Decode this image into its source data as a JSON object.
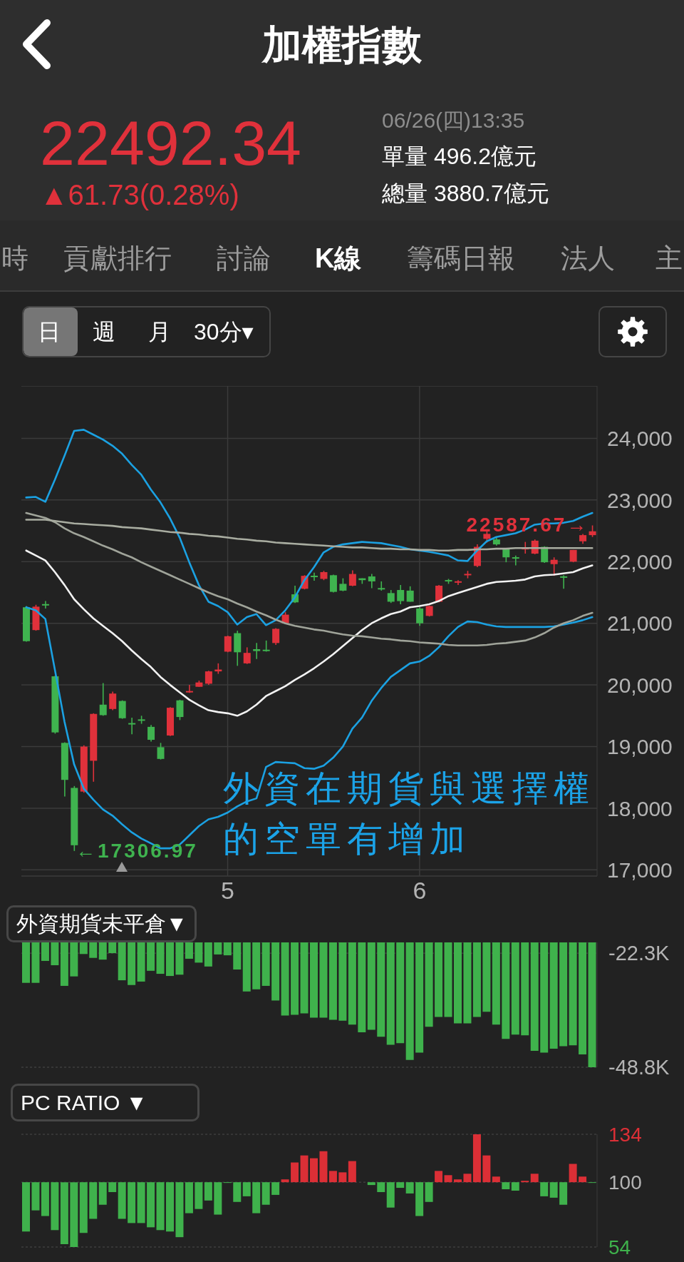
{
  "chart_data": [
    {
      "type": "candlestick",
      "title": "加權指數",
      "annotations": [
        "22492.34",
        "▲61.73(0.28%)",
        "06/26(四)13:35",
        "單量 496.2億元",
        "總量 3880.7億元",
        "時",
        "貢獻排行",
        "討論",
        "K線",
        "籌碼日報",
        "法人",
        "主",
        "日",
        "週",
        "月",
        "30分▾",
        {
          "text": "22587.67→",
          "y": 22587.67
        },
        "←17306.97",
        "外資在期貨與選擇權的空單有增加"
      ],
      "categories": [
        null,
        null,
        null,
        null,
        null,
        null,
        null,
        null,
        null,
        null,
        null,
        null,
        null,
        null,
        null,
        null,
        null,
        null,
        null,
        null,
        null,
        "5",
        null,
        null,
        null,
        null,
        null,
        null,
        null,
        null,
        null,
        null,
        null,
        null,
        null,
        null,
        null,
        null,
        null,
        null,
        null,
        "6",
        null,
        null,
        null,
        null,
        null,
        null,
        null,
        null,
        null,
        null,
        null,
        null,
        null,
        null,
        null,
        null,
        null,
        null
      ],
      "ohlc": [
        [
          21260,
          21280,
          20700,
          20710
        ],
        [
          20890,
          21300,
          20880,
          21270
        ],
        [
          21300,
          21360,
          21240,
          21290
        ],
        [
          20140,
          20150,
          19210,
          19230
        ],
        [
          19060,
          19070,
          18190,
          18460
        ],
        [
          18330,
          18360,
          17306.97,
          17400
        ],
        [
          18270,
          19020,
          18250,
          19000
        ],
        [
          18770,
          19540,
          18430,
          19530
        ],
        [
          19680,
          20030,
          19500,
          19510
        ],
        [
          19610,
          19890,
          19590,
          19860
        ],
        [
          19740,
          19750,
          19450,
          19460
        ],
        [
          19370,
          19470,
          19200,
          19360
        ],
        [
          19430,
          19500,
          19370,
          19420
        ],
        [
          19320,
          19350,
          19080,
          19110
        ],
        [
          18990,
          19060,
          18790,
          18800
        ],
        [
          19180,
          19640,
          19170,
          19630
        ],
        [
          19750,
          19760,
          19430,
          19480
        ],
        [
          19870,
          20000,
          19870,
          19890
        ],
        [
          19970,
          20070,
          19970,
          20040
        ],
        [
          20020,
          20230,
          20000,
          20220
        ],
        [
          20220,
          20350,
          20180,
          20250
        ],
        [
          20540,
          20800,
          20530,
          20790
        ],
        [
          20840,
          20880,
          20310,
          20530
        ],
        [
          20350,
          20610,
          20340,
          20520
        ],
        [
          20580,
          20680,
          20420,
          20550
        ],
        [
          20560,
          20720,
          20540,
          20540
        ],
        [
          20680,
          20920,
          20650,
          20910
        ],
        [
          21000,
          21180,
          20990,
          21140
        ],
        [
          21470,
          21610,
          21330,
          21340
        ],
        [
          21560,
          21780,
          21550,
          21770
        ],
        [
          21760,
          21820,
          21690,
          21740
        ],
        [
          21720,
          21850,
          21700,
          21830
        ],
        [
          21780,
          21790,
          21500,
          21510
        ],
        [
          21640,
          21730,
          21520,
          21530
        ],
        [
          21610,
          21860,
          21600,
          21800
        ],
        [
          21730,
          21730,
          21640,
          21700
        ],
        [
          21760,
          21800,
          21570,
          21680
        ],
        [
          21560,
          21680,
          21530,
          21540
        ],
        [
          21490,
          21540,
          21330,
          21350
        ],
        [
          21540,
          21620,
          21310,
          21360
        ],
        [
          21530,
          21600,
          21350,
          21350
        ],
        [
          21240,
          21260,
          20960,
          21000
        ],
        [
          21120,
          21290,
          21110,
          21280
        ],
        [
          21350,
          21620,
          21340,
          21610
        ],
        [
          21690,
          21720,
          21640,
          21680
        ],
        [
          21660,
          21700,
          21620,
          21670
        ],
        [
          21770,
          21850,
          21730,
          21790
        ],
        [
          21930,
          22280,
          21910,
          22240
        ],
        [
          22370,
          22490,
          22310,
          22450
        ],
        [
          22360,
          22390,
          22260,
          22280
        ],
        [
          22200,
          22210,
          21990,
          22070
        ],
        [
          22060,
          22100,
          21940,
          22040
        ],
        [
          22190,
          22320,
          22130,
          22210
        ],
        [
          22130,
          22360,
          22120,
          22340
        ],
        [
          22240,
          22250,
          21980,
          21990
        ],
        [
          21960,
          22070,
          21770,
          22030
        ],
        [
          21750,
          21780,
          21560,
          21730
        ],
        [
          22000,
          22190,
          21990,
          22190
        ],
        [
          22330,
          22450,
          22290,
          22430
        ],
        [
          22430,
          22587.67,
          22400,
          22492.34
        ]
      ],
      "colors": [
        "#3fb34f",
        "#e0313b",
        "#3fb34f",
        "#3fb34f",
        "#3fb34f",
        "#3fb34f",
        "#e0313b",
        "#e0313b",
        "#3fb34f",
        "#e0313b",
        "#3fb34f",
        "#3fb34f",
        "#3fb34f",
        "#3fb34f",
        "#3fb34f",
        "#e0313b",
        "#3fb34f",
        "#e0313b",
        "#e0313b",
        "#e0313b",
        "#e0313b",
        "#e0313b",
        "#3fb34f",
        "#e0313b",
        "#3fb34f",
        "#3fb34f",
        "#e0313b",
        "#e0313b",
        "#3fb34f",
        "#e0313b",
        "#3fb34f",
        "#e0313b",
        "#3fb34f",
        "#3fb34f",
        "#e0313b",
        "#3fb34f",
        "#3fb34f",
        "#3fb34f",
        "#3fb34f",
        "#3fb34f",
        "#3fb34f",
        "#3fb34f",
        "#e0313b",
        "#e0313b",
        "#3fb34f",
        "#e0313b",
        "#e0313b",
        "#e0313b",
        "#e0313b",
        "#3fb34f",
        "#3fb34f",
        "#3fb34f",
        "#e0313b",
        "#e0313b",
        "#3fb34f",
        "#e0313b",
        "#3fb34f",
        "#e0313b",
        "#e0313b",
        "#e0313b"
      ],
      "series": [
        {
          "type": "line",
          "color": "#1ba1e2",
          "values": [
            23040,
            23050,
            22970,
            23330,
            23720,
            24120,
            24140,
            24060,
            23980,
            23880,
            23750,
            23570,
            23410,
            23170,
            22960,
            22700,
            22390,
            21990,
            21620,
            21350,
            21280,
            21180,
            20980,
            21100,
            21150,
            20970,
            21050,
            21210,
            21420,
            21700,
            21910,
            22150,
            22240,
            22280,
            22300,
            22320,
            22310,
            22300,
            22270,
            22240,
            22200,
            22180,
            22160,
            22130,
            22100,
            22020,
            22010,
            22180,
            22330,
            22400,
            22430,
            22460,
            22520,
            22600,
            22620,
            22620,
            22630,
            22660,
            22730,
            22790
          ]
        },
        {
          "type": "line",
          "color": "#1ba1e2",
          "values": [
            21260,
            21210,
            21070,
            20240,
            19400,
            18710,
            18320,
            18140,
            17980,
            17880,
            17740,
            17610,
            17510,
            17430,
            17350,
            17350,
            17410,
            17560,
            17710,
            17820,
            17860,
            17930,
            18030,
            18110,
            18160,
            18670,
            18750,
            18740,
            18730,
            18650,
            18640,
            18690,
            18820,
            19000,
            19290,
            19470,
            19740,
            19950,
            20130,
            20240,
            20350,
            20380,
            20470,
            20610,
            20790,
            20940,
            21030,
            21020,
            20980,
            20950,
            20940,
            20940,
            20940,
            20940,
            20940,
            20950,
            20980,
            21010,
            21050,
            21100
          ]
        },
        {
          "type": "line",
          "color": "#f2f2f2",
          "values": [
            22180,
            22100,
            22020,
            21830,
            21620,
            21390,
            21230,
            21080,
            20960,
            20840,
            20710,
            20560,
            20420,
            20290,
            20130,
            20000,
            19880,
            19760,
            19670,
            19590,
            19560,
            19540,
            19500,
            19570,
            19680,
            19820,
            19900,
            19980,
            20080,
            20170,
            20270,
            20380,
            20500,
            20630,
            20760,
            20890,
            21000,
            21080,
            21150,
            21190,
            21260,
            21280,
            21310,
            21360,
            21440,
            21490,
            21540,
            21590,
            21640,
            21670,
            21680,
            21690,
            21710,
            21760,
            21780,
            21790,
            21810,
            21830,
            21890,
            21940
          ]
        },
        {
          "type": "line",
          "color": "#a0a49a",
          "values": [
            22790,
            22750,
            22710,
            22640,
            22540,
            22460,
            22400,
            22330,
            22260,
            22200,
            22130,
            22070,
            21990,
            21920,
            21850,
            21780,
            21710,
            21640,
            21570,
            21500,
            21440,
            21390,
            21320,
            21260,
            21190,
            21130,
            21060,
            21000,
            20960,
            20930,
            20900,
            20880,
            20850,
            20820,
            20800,
            20790,
            20770,
            20750,
            20740,
            20720,
            20710,
            20690,
            20680,
            20670,
            20650,
            20640,
            20640,
            20640,
            20650,
            20670,
            20680,
            20700,
            20720,
            20770,
            20840,
            20930,
            21000,
            21050,
            21120,
            21170
          ]
        },
        {
          "type": "line",
          "color": "#a9ada1",
          "values": [
            22680,
            22680,
            22680,
            22660,
            22640,
            22620,
            22610,
            22600,
            22590,
            22580,
            22560,
            22550,
            22540,
            22520,
            22500,
            22480,
            22470,
            22450,
            22440,
            22420,
            22410,
            22390,
            22370,
            22360,
            22340,
            22330,
            22310,
            22300,
            22290,
            22280,
            22270,
            22260,
            22250,
            22240,
            22230,
            22230,
            22220,
            22210,
            22210,
            22200,
            22200,
            22190,
            22190,
            22180,
            22180,
            22190,
            22190,
            22200,
            22200,
            22210,
            22210,
            22220,
            22220,
            22220,
            22220,
            22220,
            22220,
            22220,
            22220,
            22220
          ]
        }
      ],
      "ylim": [
        16900,
        24850
      ],
      "yticks": [
        {
          "value": 17000,
          "label": "17,000"
        },
        {
          "value": 18000,
          "label": "18,000"
        },
        {
          "value": 19000,
          "label": "19,000"
        },
        {
          "value": 20000,
          "label": "20,000"
        },
        {
          "value": 21000,
          "label": "21,000"
        },
        {
          "value": 22000,
          "label": "22,000"
        },
        {
          "value": 23000,
          "label": "23,000"
        },
        {
          "value": 24000,
          "label": "24,000"
        }
      ],
      "grid": true
    },
    {
      "type": "bar",
      "title": "外資期貨未平倉▼",
      "categories": [
        null,
        null,
        null,
        null,
        null,
        null,
        null,
        null,
        null,
        null,
        null,
        null,
        null,
        null,
        null,
        null,
        null,
        null,
        null,
        null,
        null,
        null,
        null,
        null,
        null,
        null,
        null,
        null,
        null,
        null,
        null,
        null,
        null,
        null,
        null,
        null,
        null,
        null,
        null,
        null,
        null,
        null,
        null,
        null,
        null,
        null,
        null,
        null,
        null,
        null,
        null,
        null,
        null,
        null,
        null,
        null,
        null,
        null,
        null,
        null
      ],
      "values": [
        -29.2,
        -29.2,
        -24.1,
        -25.1,
        -29.9,
        -27.7,
        -22.5,
        -23.4,
        -23.8,
        -22.3,
        -28.6,
        -29.7,
        -28.9,
        -26.4,
        -27.1,
        -27.6,
        -27.3,
        -23.6,
        -24.5,
        -25.4,
        -22.6,
        -22.8,
        -26.1,
        -31.2,
        -30.7,
        -29.9,
        -33.3,
        -36.8,
        -36.6,
        -36.3,
        -37.3,
        -37.3,
        -37.8,
        -38.0,
        -38.9,
        -40.7,
        -40.1,
        -41.7,
        -43.6,
        -43.2,
        -47.1,
        -45.4,
        -39.4,
        -37.1,
        -37.1,
        -38.6,
        -38.6,
        -37.1,
        -35.9,
        -38.9,
        -42.2,
        -41.2,
        -41.4,
        -45.0,
        -45.4,
        -44.5,
        -43.9,
        -43.7,
        -45.8,
        -48.8
      ],
      "color": "#3fb24c",
      "ylim": [
        -48.8,
        -19.8
      ],
      "yticks": [
        {
          "value": -22.3,
          "label": "-22.3K"
        },
        {
          "value": -48.8,
          "label": "-48.8K"
        }
      ],
      "grid": "y",
      "tick_labels": "y"
    },
    {
      "type": "bar",
      "title": "PC RATIO ▼",
      "categories": [
        null,
        null,
        null,
        null,
        null,
        null,
        null,
        null,
        null,
        null,
        null,
        null,
        null,
        null,
        null,
        null,
        null,
        null,
        null,
        null,
        null,
        null,
        null,
        null,
        null,
        null,
        null,
        null,
        null,
        null,
        null,
        null,
        null,
        null,
        null,
        null,
        null,
        null,
        null,
        null,
        null,
        null,
        null,
        null,
        null,
        null,
        null,
        null,
        null,
        null,
        null,
        null,
        null,
        null,
        null,
        null,
        null,
        null,
        null,
        null
      ],
      "base": [
        100,
        100,
        100,
        100,
        100,
        100,
        100,
        100,
        100,
        100,
        100,
        100,
        100,
        100,
        100,
        100,
        100,
        100,
        100,
        100,
        100,
        100,
        100,
        100,
        100,
        100,
        100,
        100,
        100,
        100,
        100,
        100,
        100,
        100,
        100,
        null,
        100,
        100,
        100,
        100,
        100,
        100,
        100,
        100,
        100,
        100,
        100,
        100,
        100,
        100,
        100,
        100,
        100,
        100,
        100,
        100,
        100,
        100,
        100,
        100
      ],
      "values": [
        -35,
        -20,
        -24,
        -34,
        -44,
        -46,
        -36,
        -26,
        -16,
        -7,
        -26,
        -29,
        -29,
        -32,
        -34,
        -35,
        -39,
        -22,
        -19,
        -13,
        -23,
        -0.5,
        -14,
        -10,
        -22,
        -16,
        -9,
        2,
        14,
        19,
        17,
        22,
        8,
        7,
        15,
        null,
        -2,
        -7,
        -18,
        -4,
        -8,
        -24,
        -14,
        8,
        5,
        2,
        6,
        34,
        19,
        4,
        -5,
        -6,
        1,
        6,
        -10,
        -11,
        -16,
        13,
        4,
        -0.5
      ],
      "colors": [
        "#3fb24c",
        "#3fb24c",
        "#3fb24c",
        "#3fb24c",
        "#3fb24c",
        "#3fb24c",
        "#3fb24c",
        "#3fb24c",
        "#3fb24c",
        "#3fb24c",
        "#3fb24c",
        "#3fb24c",
        "#3fb24c",
        "#3fb24c",
        "#3fb24c",
        "#3fb24c",
        "#3fb24c",
        "#3fb24c",
        "#3fb24c",
        "#3fb24c",
        "#3fb24c",
        "#3fb24c",
        "#3fb24c",
        "#3fb24c",
        "#3fb24c",
        "#3fb24c",
        "#3fb24c",
        "#dc2f36",
        "#dc2f36",
        "#dc2f36",
        "#dc2f36",
        "#dc2f36",
        "#dc2f36",
        "#dc2f36",
        "#dc2f36",
        "#3fb24c",
        "#3fb24c",
        "#3fb24c",
        "#3fb24c",
        "#3fb24c",
        "#3fb24c",
        "#3fb24c",
        "#3fb24c",
        "#dc2f36",
        "#dc2f36",
        "#dc2f36",
        "#dc2f36",
        "#dc2f36",
        "#dc2f36",
        "#dc2f36",
        "#3fb24c",
        "#3fb24c",
        "#dc2f36",
        "#dc2f36",
        "#3fb24c",
        "#3fb24c",
        "#3fb24c",
        "#dc2f36",
        "#dc2f36",
        "#3fb24c"
      ],
      "ylim": [
        54,
        134
      ],
      "yticks": [
        134,
        100,
        54
      ],
      "grid": "y",
      "tick_labels": "y"
    }
  ]
}
